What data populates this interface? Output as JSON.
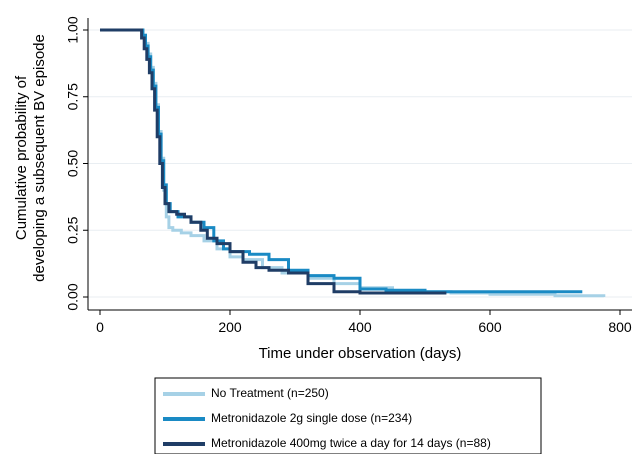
{
  "chart_data": {
    "type": "line",
    "title": "",
    "xlabel": "Time under observation (days)",
    "ylabel_lines": [
      "Cumulative probability of",
      "developing a subsequent BV episode"
    ],
    "xlim": [
      0,
      800
    ],
    "ylim": [
      0,
      1
    ],
    "x_ticks": [
      0,
      200,
      400,
      600,
      800
    ],
    "x_tick_labels": [
      "0",
      "200",
      "400",
      "600",
      "800"
    ],
    "y_ticks": [
      0,
      0.25,
      0.5,
      0.75,
      1
    ],
    "y_tick_labels": [
      "0.00",
      "0.25",
      "0.50",
      "0.75",
      "1.00"
    ],
    "grid": "horizontal",
    "step": true,
    "legend_placement": "bottom",
    "series": [
      {
        "name": "No Treatment (n=250)",
        "color": "#a6d1e6",
        "points": [
          [
            0,
            1
          ],
          [
            62,
            1
          ],
          [
            66,
            0.98
          ],
          [
            70,
            0.95
          ],
          [
            74,
            0.91
          ],
          [
            78,
            0.86
          ],
          [
            82,
            0.8
          ],
          [
            86,
            0.72
          ],
          [
            90,
            0.62
          ],
          [
            94,
            0.52
          ],
          [
            98,
            0.4
          ],
          [
            102,
            0.3
          ],
          [
            106,
            0.26
          ],
          [
            112,
            0.25
          ],
          [
            125,
            0.24
          ],
          [
            140,
            0.23
          ],
          [
            160,
            0.21
          ],
          [
            180,
            0.18
          ],
          [
            200,
            0.15
          ],
          [
            220,
            0.14
          ],
          [
            250,
            0.11
          ],
          [
            280,
            0.09
          ],
          [
            320,
            0.07
          ],
          [
            360,
            0.05
          ],
          [
            400,
            0.035
          ],
          [
            450,
            0.02
          ],
          [
            540,
            0.015
          ],
          [
            600,
            0.01
          ],
          [
            700,
            0.005
          ],
          [
            775,
            0.0
          ]
        ]
      },
      {
        "name": "Metronidazole 2g single dose (n=234)",
        "color": "#1a8ac4",
        "points": [
          [
            0,
            1
          ],
          [
            62,
            1
          ],
          [
            66,
            0.98
          ],
          [
            70,
            0.94
          ],
          [
            74,
            0.9
          ],
          [
            78,
            0.85
          ],
          [
            82,
            0.79
          ],
          [
            86,
            0.71
          ],
          [
            90,
            0.61
          ],
          [
            94,
            0.51
          ],
          [
            98,
            0.42
          ],
          [
            102,
            0.35
          ],
          [
            108,
            0.32
          ],
          [
            120,
            0.3
          ],
          [
            140,
            0.28
          ],
          [
            160,
            0.26
          ],
          [
            175,
            0.21
          ],
          [
            190,
            0.18
          ],
          [
            200,
            0.17
          ],
          [
            230,
            0.16
          ],
          [
            260,
            0.14
          ],
          [
            290,
            0.1
          ],
          [
            320,
            0.08
          ],
          [
            360,
            0.07
          ],
          [
            400,
            0.03
          ],
          [
            440,
            0.025
          ],
          [
            500,
            0.02
          ],
          [
            600,
            0.02
          ],
          [
            742,
            0.02
          ]
        ]
      },
      {
        "name": "Metronidazole 400mg twice a day for 14 days (n=88)",
        "color": "#1f3d66",
        "points": [
          [
            0,
            1
          ],
          [
            60,
            1
          ],
          [
            64,
            0.97
          ],
          [
            68,
            0.93
          ],
          [
            72,
            0.89
          ],
          [
            76,
            0.84
          ],
          [
            80,
            0.78
          ],
          [
            84,
            0.7
          ],
          [
            88,
            0.6
          ],
          [
            92,
            0.5
          ],
          [
            96,
            0.41
          ],
          [
            100,
            0.35
          ],
          [
            106,
            0.32
          ],
          [
            118,
            0.31
          ],
          [
            130,
            0.3
          ],
          [
            140,
            0.28
          ],
          [
            155,
            0.25
          ],
          [
            165,
            0.22
          ],
          [
            180,
            0.2
          ],
          [
            200,
            0.17
          ],
          [
            220,
            0.13
          ],
          [
            240,
            0.11
          ],
          [
            260,
            0.1
          ],
          [
            290,
            0.09
          ],
          [
            320,
            0.05
          ],
          [
            360,
            0.02
          ],
          [
            400,
            0.015
          ],
          [
            480,
            0.015
          ],
          [
            533,
            0.015
          ]
        ]
      }
    ]
  }
}
